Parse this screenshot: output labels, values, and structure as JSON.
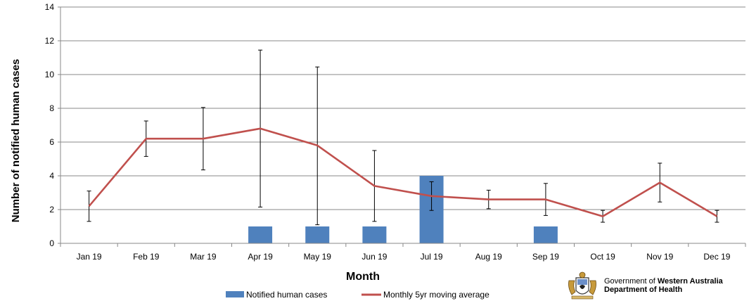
{
  "chart_data": {
    "type": "bar",
    "title": "",
    "xlabel": "Month",
    "ylabel": "Number of notified human cases",
    "ylim": [
      0,
      14
    ],
    "yticks": [
      0,
      2,
      4,
      6,
      8,
      10,
      12,
      14
    ],
    "categories": [
      "Jan 19",
      "Feb 19",
      "Mar 19",
      "Apr 19",
      "May 19",
      "Jun 19",
      "Jul 19",
      "Aug 19",
      "Sep 19",
      "Oct 19",
      "Nov 19",
      "Dec 19"
    ],
    "series": [
      {
        "name": "Notified human cases",
        "type": "bar",
        "color": "#4F81BD",
        "values": [
          0,
          0,
          0,
          1,
          1,
          1,
          4,
          0,
          1,
          0,
          0,
          0
        ]
      },
      {
        "name": "Monthly 5yr moving average",
        "type": "line",
        "color": "#C0504D",
        "values": [
          2.2,
          6.2,
          6.2,
          6.8,
          5.8,
          3.4,
          2.8,
          2.6,
          2.6,
          1.6,
          3.6,
          1.6
        ],
        "error_low": [
          1.3,
          5.15,
          4.35,
          2.15,
          1.1,
          1.3,
          1.95,
          2.05,
          1.65,
          1.25,
          2.45,
          1.25
        ],
        "error_high": [
          3.1,
          7.25,
          8.05,
          11.45,
          10.45,
          5.5,
          3.65,
          3.15,
          3.55,
          1.95,
          4.75,
          1.95
        ]
      }
    ],
    "grid": true,
    "legend": "bottom"
  },
  "branding": {
    "prefix": "Government of ",
    "bold": "Western Australia",
    "line2": "Department of Health"
  }
}
